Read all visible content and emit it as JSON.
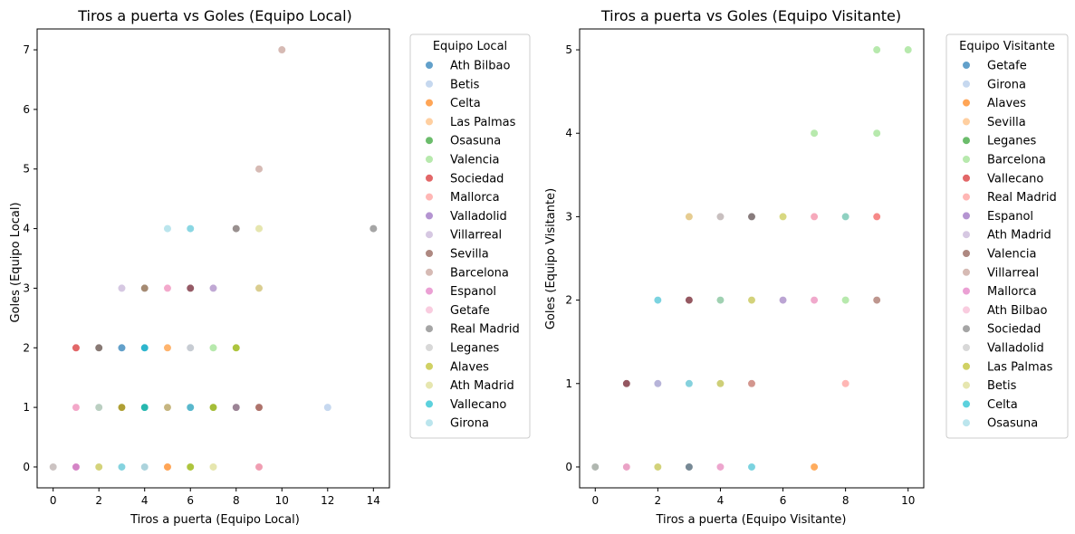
{
  "chart_data": [
    {
      "type": "scatter",
      "title": "Tiros a puerta vs Goles (Equipo Local)",
      "xlabel": "Tiros a puerta (Equipo Local)",
      "ylabel": "Goles (Equipo Local)",
      "xlim": [
        -0.7,
        14.7
      ],
      "ylim": [
        -0.35,
        7.35
      ],
      "xticks": [
        0,
        2,
        4,
        6,
        8,
        10,
        12,
        14
      ],
      "yticks": [
        0,
        1,
        2,
        3,
        4,
        5,
        6,
        7
      ],
      "legend_title": "Equipo Local",
      "legend_position": "outside-right",
      "series": [
        {
          "name": "Ath Bilbao",
          "color": "#1f77b4",
          "points": [
            [
              3,
              2
            ],
            [
              4,
              2
            ],
            [
              4,
              1
            ],
            [
              1,
              0
            ],
            [
              3,
              1
            ]
          ]
        },
        {
          "name": "Betis",
          "color": "#aec7e8",
          "points": [
            [
              12,
              1
            ],
            [
              6,
              2
            ],
            [
              3,
              0
            ],
            [
              4,
              1
            ],
            [
              2,
              2
            ]
          ]
        },
        {
          "name": "Celta",
          "color": "#ff7f0e",
          "points": [
            [
              2,
              1
            ],
            [
              5,
              2
            ],
            [
              5,
              0
            ],
            [
              6,
              1
            ],
            [
              4,
              3
            ]
          ]
        },
        {
          "name": "Las Palmas",
          "color": "#ffbb78",
          "points": [
            [
              5,
              2
            ],
            [
              2,
              1
            ],
            [
              9,
              3
            ],
            [
              4,
              0
            ],
            [
              1,
              1
            ]
          ]
        },
        {
          "name": "Osasuna",
          "color": "#2ca02c",
          "points": [
            [
              8,
              2
            ],
            [
              6,
              0
            ],
            [
              7,
              1
            ],
            [
              2,
              2
            ],
            [
              4,
              1
            ]
          ]
        },
        {
          "name": "Valencia",
          "color": "#98df8a",
          "points": [
            [
              7,
              2
            ],
            [
              8,
              2
            ],
            [
              6,
              0
            ],
            [
              2,
              0
            ],
            [
              3,
              1
            ]
          ]
        },
        {
          "name": "Sociedad",
          "color": "#d62728",
          "points": [
            [
              1,
              2
            ],
            [
              6,
              3
            ],
            [
              9,
              0
            ],
            [
              5,
              1
            ],
            [
              3,
              1
            ]
          ]
        },
        {
          "name": "Mallorca",
          "color": "#ff9896",
          "points": [
            [
              5,
              3
            ],
            [
              1,
              1
            ],
            [
              6,
              1
            ],
            [
              9,
              1
            ],
            [
              2,
              2
            ]
          ]
        },
        {
          "name": "Valladolid",
          "color": "#9467bd",
          "points": [
            [
              1,
              0
            ],
            [
              7,
              3
            ],
            [
              3,
              1
            ],
            [
              5,
              1
            ],
            [
              6,
              3
            ]
          ]
        },
        {
          "name": "Villarreal",
          "color": "#c5b0d5",
          "points": [
            [
              3,
              3
            ],
            [
              7,
              3
            ],
            [
              1,
              0
            ],
            [
              4,
              0
            ],
            [
              8,
              1
            ]
          ]
        },
        {
          "name": "Sevilla",
          "color": "#8c564b",
          "points": [
            [
              3,
              1
            ],
            [
              6,
              3
            ],
            [
              5,
              1
            ],
            [
              9,
              1
            ],
            [
              2,
              2
            ]
          ]
        },
        {
          "name": "Barcelona",
          "color": "#c49c94",
          "points": [
            [
              10,
              7
            ],
            [
              9,
              5
            ],
            [
              0,
              0
            ],
            [
              9,
              3
            ],
            [
              8,
              4
            ]
          ]
        },
        {
          "name": "Espanol",
          "color": "#e377c2",
          "points": [
            [
              1,
              0
            ],
            [
              5,
              3
            ],
            [
              6,
              1
            ],
            [
              1,
              1
            ],
            [
              8,
              1
            ]
          ]
        },
        {
          "name": "Getafe",
          "color": "#f7b6d2",
          "points": [
            [
              1,
              1
            ],
            [
              5,
              3
            ],
            [
              6,
              1
            ],
            [
              2,
              0
            ],
            [
              9,
              0
            ]
          ]
        },
        {
          "name": "Real Madrid",
          "color": "#7f7f7f",
          "points": [
            [
              14,
              4
            ],
            [
              8,
              4
            ],
            [
              4,
              3
            ],
            [
              2,
              2
            ],
            [
              8,
              1
            ]
          ]
        },
        {
          "name": "Leganes",
          "color": "#c7c7c7",
          "points": [
            [
              0,
              0
            ],
            [
              2,
              0
            ],
            [
              4,
              0
            ],
            [
              3,
              0
            ],
            [
              6,
              2
            ]
          ]
        },
        {
          "name": "Alaves",
          "color": "#bcbd22",
          "points": [
            [
              7,
              1
            ],
            [
              2,
              0
            ],
            [
              8,
              2
            ],
            [
              6,
              0
            ],
            [
              3,
              1
            ]
          ]
        },
        {
          "name": "Ath Madrid",
          "color": "#dbdb8d",
          "points": [
            [
              9,
              4
            ],
            [
              2,
              0
            ],
            [
              7,
              0
            ],
            [
              5,
              1
            ],
            [
              9,
              3
            ]
          ]
        },
        {
          "name": "Vallecano",
          "color": "#17becf",
          "points": [
            [
              6,
              4
            ],
            [
              4,
              1
            ],
            [
              4,
              2
            ],
            [
              3,
              0
            ],
            [
              6,
              1
            ]
          ]
        },
        {
          "name": "Girona",
          "color": "#9edae5",
          "points": [
            [
              5,
              4
            ],
            [
              6,
              4
            ],
            [
              3,
              0
            ],
            [
              4,
              0
            ],
            [
              2,
              1
            ]
          ]
        }
      ]
    },
    {
      "type": "scatter",
      "title": "Tiros a puerta vs Goles (Equipo Visitante)",
      "xlabel": "Tiros a puerta (Equipo Visitante)",
      "ylabel": "Goles (Equipo Visitante)",
      "xlim": [
        -0.5,
        10.5
      ],
      "ylim": [
        -0.25,
        5.25
      ],
      "xticks": [
        0,
        2,
        4,
        6,
        8,
        10
      ],
      "yticks": [
        0,
        1,
        2,
        3,
        4,
        5
      ],
      "legend_title": "Equipo Visitante",
      "legend_position": "outside-right",
      "series": [
        {
          "name": "Getafe",
          "color": "#1f77b4",
          "points": [
            [
              3,
              0
            ],
            [
              5,
              3
            ],
            [
              2,
              1
            ],
            [
              1,
              1
            ],
            [
              3,
              2
            ]
          ]
        },
        {
          "name": "Girona",
          "color": "#aec7e8",
          "points": [
            [
              2,
              1
            ],
            [
              3,
              1
            ],
            [
              6,
              2
            ],
            [
              4,
              1
            ],
            [
              5,
              3
            ]
          ]
        },
        {
          "name": "Alaves",
          "color": "#ff7f0e",
          "points": [
            [
              7,
              0
            ],
            [
              3,
              2
            ],
            [
              1,
              1
            ],
            [
              7,
              0
            ],
            [
              3,
              2
            ]
          ]
        },
        {
          "name": "Sevilla",
          "color": "#ffbb78",
          "points": [
            [
              3,
              3
            ],
            [
              5,
              1
            ],
            [
              2,
              0
            ],
            [
              7,
              0
            ],
            [
              3,
              2
            ]
          ]
        },
        {
          "name": "Leganes",
          "color": "#2ca02c",
          "points": [
            [
              8,
              3
            ],
            [
              4,
              2
            ],
            [
              0,
              0
            ],
            [
              3,
              1
            ],
            [
              5,
              2
            ]
          ]
        },
        {
          "name": "Barcelona",
          "color": "#98df8a",
          "points": [
            [
              9,
              5
            ],
            [
              10,
              5
            ],
            [
              9,
              4
            ],
            [
              7,
              4
            ],
            [
              8,
              2
            ]
          ]
        },
        {
          "name": "Vallecano",
          "color": "#d62728",
          "points": [
            [
              1,
              1
            ],
            [
              5,
              1
            ],
            [
              9,
              3
            ],
            [
              7,
              3
            ],
            [
              3,
              2
            ]
          ]
        },
        {
          "name": "Real Madrid",
          "color": "#ff9896",
          "points": [
            [
              8,
              1
            ],
            [
              9,
              3
            ],
            [
              7,
              3
            ],
            [
              5,
              1
            ],
            [
              3,
              3
            ]
          ]
        },
        {
          "name": "Espanol",
          "color": "#9467bd",
          "points": [
            [
              1,
              0
            ],
            [
              6,
              2
            ],
            [
              4,
              0
            ],
            [
              3,
              2
            ],
            [
              1,
              1
            ]
          ]
        },
        {
          "name": "Ath Madrid",
          "color": "#c5b0d5",
          "points": [
            [
              4,
              3
            ],
            [
              6,
              2
            ],
            [
              1,
              0
            ],
            [
              5,
              3
            ],
            [
              2,
              1
            ]
          ]
        },
        {
          "name": "Valencia",
          "color": "#8c564b",
          "points": [
            [
              9,
              2
            ],
            [
              5,
              3
            ],
            [
              1,
              1
            ],
            [
              3,
              2
            ],
            [
              1,
              0
            ]
          ]
        },
        {
          "name": "Villarreal",
          "color": "#c49c94",
          "points": [
            [
              9,
              2
            ],
            [
              4,
              3
            ],
            [
              2,
              0
            ],
            [
              5,
              1
            ],
            [
              7,
              2
            ]
          ]
        },
        {
          "name": "Mallorca",
          "color": "#e377c2",
          "points": [
            [
              4,
              0
            ],
            [
              7,
              2
            ],
            [
              1,
              0
            ],
            [
              3,
              1
            ],
            [
              5,
              2
            ]
          ]
        },
        {
          "name": "Ath Bilbao",
          "color": "#f7b6d2",
          "points": [
            [
              7,
              3
            ],
            [
              4,
              0
            ],
            [
              7,
              2
            ],
            [
              2,
              0
            ],
            [
              1,
              0
            ]
          ]
        },
        {
          "name": "Sociedad",
          "color": "#7f7f7f",
          "points": [
            [
              5,
              3
            ],
            [
              4,
              1
            ],
            [
              2,
              0
            ],
            [
              0,
              0
            ],
            [
              3,
              0
            ]
          ]
        },
        {
          "name": "Valladolid",
          "color": "#c7c7c7",
          "points": [
            [
              4,
              3
            ],
            [
              2,
              0
            ],
            [
              0,
              0
            ],
            [
              5,
              2
            ],
            [
              3,
              1
            ]
          ]
        },
        {
          "name": "Las Palmas",
          "color": "#bcbd22",
          "points": [
            [
              6,
              3
            ],
            [
              5,
              2
            ],
            [
              4,
              1
            ],
            [
              2,
              0
            ],
            [
              4,
              2
            ]
          ]
        },
        {
          "name": "Betis",
          "color": "#dbdb8d",
          "points": [
            [
              5,
              2
            ],
            [
              2,
              0
            ],
            [
              6,
              3
            ],
            [
              4,
              1
            ],
            [
              3,
              3
            ]
          ]
        },
        {
          "name": "Celta",
          "color": "#17becf",
          "points": [
            [
              2,
              2
            ],
            [
              5,
              0
            ],
            [
              5,
              0
            ],
            [
              3,
              1
            ],
            [
              2,
              2
            ]
          ]
        },
        {
          "name": "Osasuna",
          "color": "#9edae5",
          "points": [
            [
              2,
              2
            ],
            [
              3,
              1
            ],
            [
              5,
              0
            ],
            [
              4,
              2
            ],
            [
              8,
              3
            ]
          ]
        }
      ]
    }
  ]
}
